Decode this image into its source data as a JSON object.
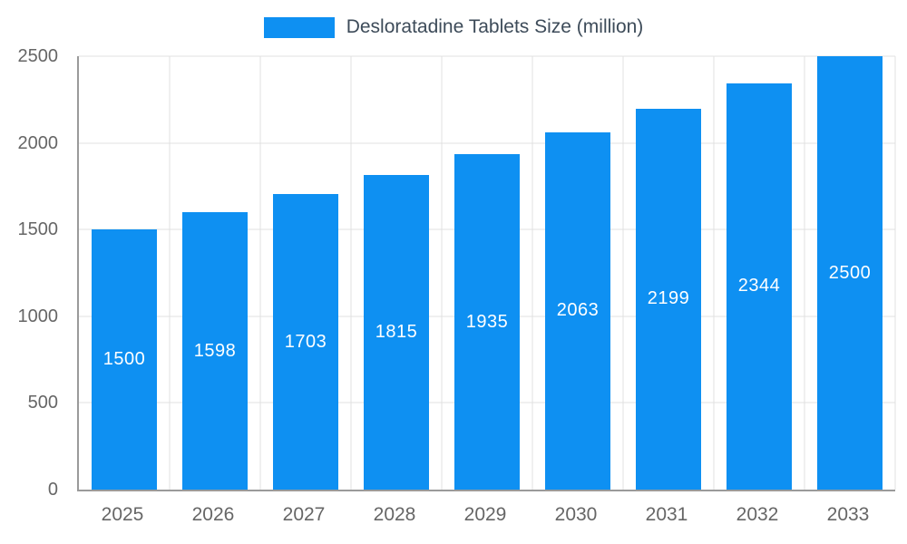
{
  "chart_data": {
    "type": "bar",
    "title": "Desloratadine Tablets Size (million)",
    "series_name": "Desloratadine Tablets Size (million)",
    "categories": [
      "2025",
      "2026",
      "2027",
      "2028",
      "2029",
      "2030",
      "2031",
      "2032",
      "2033"
    ],
    "values": [
      1500,
      1598,
      1703,
      1815,
      1935,
      2063,
      2199,
      2344,
      2500
    ],
    "xlabel": "",
    "ylabel": "",
    "ylim": [
      0,
      2500
    ],
    "yticks": [
      0,
      500,
      1000,
      1500,
      2000,
      2500
    ],
    "grid": true,
    "legend_position": "top",
    "bar_color": "#0e90f2",
    "value_label_color": "#ffffff",
    "axis_text_color": "#666666",
    "legend_text_color": "#3d4b59"
  }
}
